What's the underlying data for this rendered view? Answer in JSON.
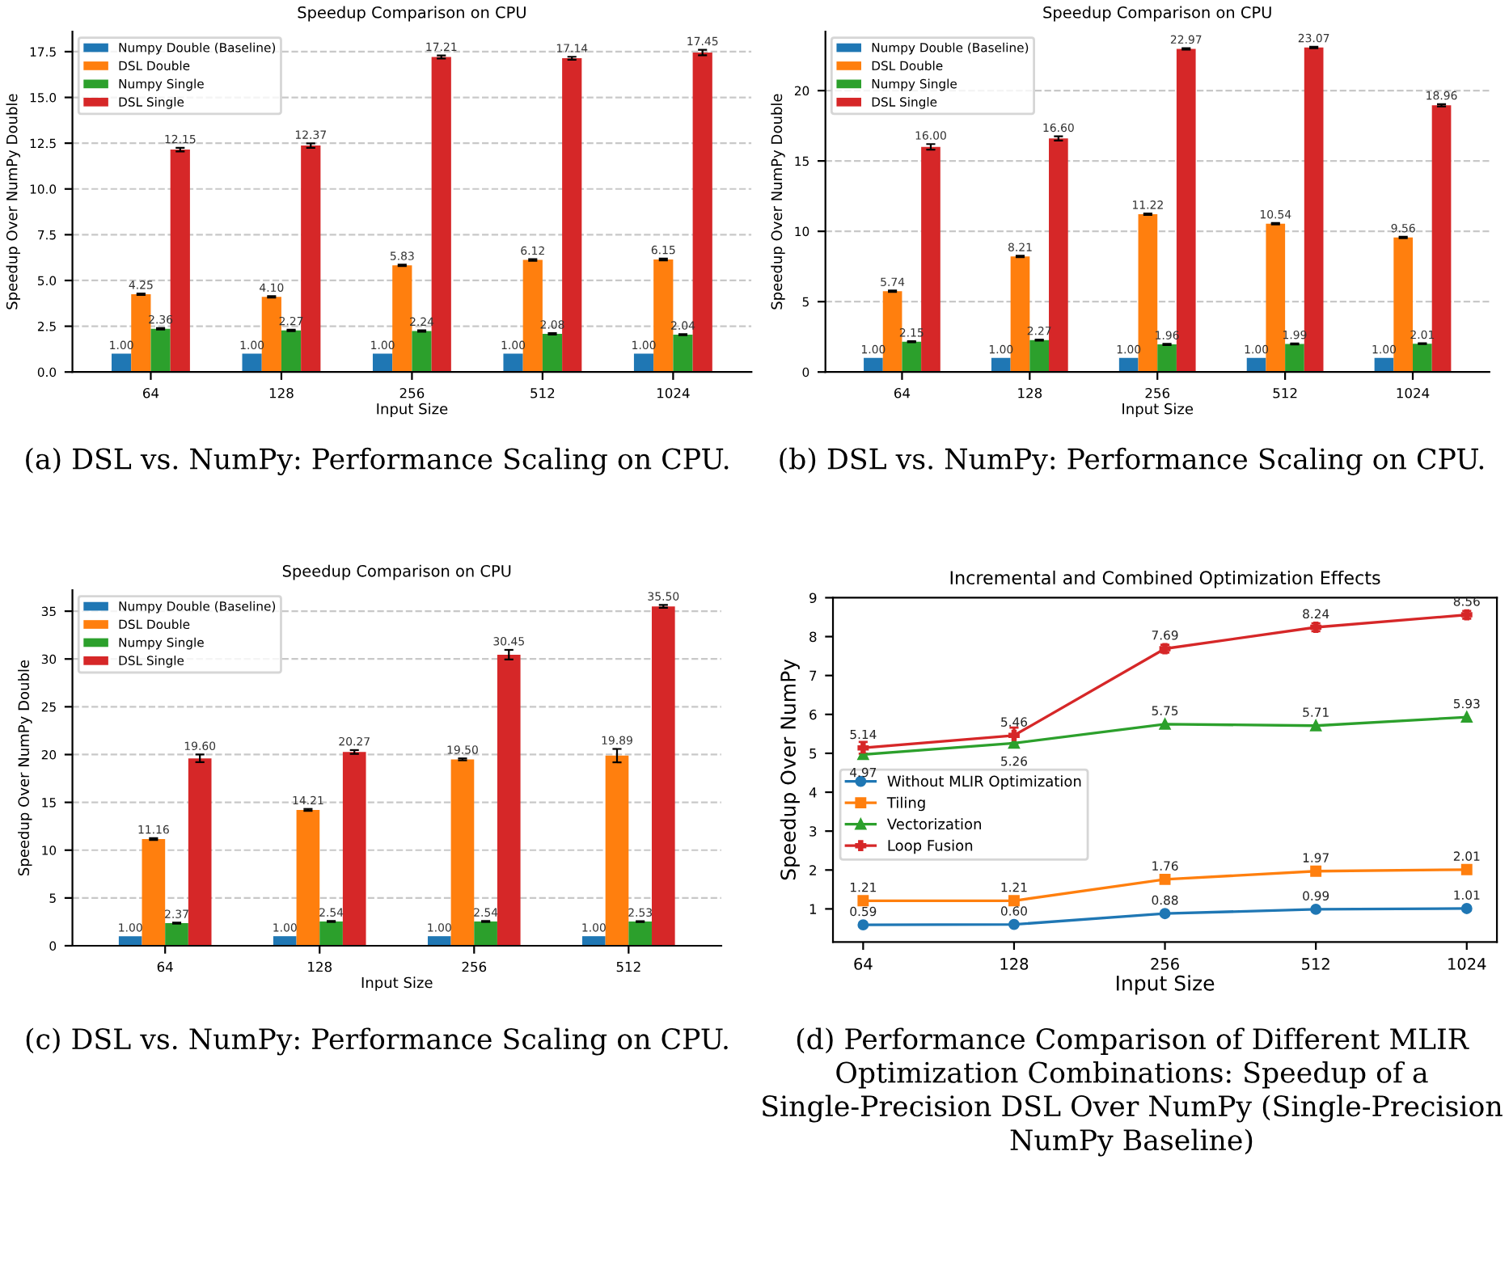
{
  "chart_data": [
    {
      "type": "bar",
      "title": "Speedup Comparison on CPU",
      "xlabel": "Input Size",
      "ylabel": "Speedup Over NumPy Double",
      "categories": [
        "64",
        "128",
        "256",
        "512",
        "1024"
      ],
      "series": [
        {
          "name": "Numpy Double (Baseline)",
          "color": "#1f77b4",
          "values": [
            1.0,
            1.0,
            1.0,
            1.0,
            1.0
          ],
          "value_labels": [
            "1.00",
            "1.00",
            "1.00",
            "1.00",
            "1.00"
          ]
        },
        {
          "name": "DSL Double",
          "color": "#ff7f0e",
          "values": [
            4.25,
            4.1,
            5.83,
            6.12,
            6.15
          ],
          "errors": [
            0.04,
            0.04,
            0.04,
            0.04,
            0.05
          ],
          "value_labels": [
            "4.25",
            "4.10",
            "5.83",
            "6.12",
            "6.15"
          ]
        },
        {
          "name": "Numpy Single",
          "color": "#2ca02c",
          "values": [
            2.36,
            2.27,
            2.24,
            2.08,
            2.04
          ],
          "errors": [
            0.04,
            0.04,
            0.04,
            0.04,
            0.03
          ],
          "value_labels": [
            "2.36",
            "2.27",
            "2.24",
            "2.08",
            "2.04"
          ]
        },
        {
          "name": "DSL Single",
          "color": "#d62728",
          "values": [
            12.15,
            12.37,
            17.21,
            17.14,
            17.45
          ],
          "errors": [
            0.1,
            0.12,
            0.08,
            0.08,
            0.15
          ],
          "value_labels": [
            "12.15",
            "12.37",
            "17.21",
            "17.14",
            "17.45"
          ]
        }
      ],
      "ylim": [
        0,
        18.6
      ],
      "yticks": [
        {
          "value": 0,
          "label": "0.0"
        },
        {
          "value": 2.5,
          "label": "2.5"
        },
        {
          "value": 5,
          "label": "5.0"
        },
        {
          "value": 7.5,
          "label": "7.5"
        },
        {
          "value": 10,
          "label": "10.0"
        },
        {
          "value": 12.5,
          "label": "12.5"
        },
        {
          "value": 15,
          "label": "15.0"
        },
        {
          "value": 17.5,
          "label": "17.5"
        }
      ],
      "grid": "y",
      "legend": "top left",
      "annotations": [
        "(a) DSL vs. NumPy: Performance Scaling on CPU."
      ]
    },
    {
      "type": "bar",
      "title": "Speedup Comparison on CPU",
      "xlabel": "Input Size",
      "ylabel": "Speedup Over NumPy Double",
      "categories": [
        "64",
        "128",
        "256",
        "512",
        "1024"
      ],
      "series": [
        {
          "name": "Numpy Double (Baseline)",
          "color": "#1f77b4",
          "values": [
            1.0,
            1.0,
            1.0,
            1.0,
            1.0
          ],
          "value_labels": [
            "1.00",
            "1.00",
            "1.00",
            "1.00",
            "1.00"
          ]
        },
        {
          "name": "DSL Double",
          "color": "#ff7f0e",
          "values": [
            5.74,
            8.21,
            11.22,
            10.54,
            9.56
          ],
          "errors": [
            0.05,
            0.05,
            0.05,
            0.05,
            0.05
          ],
          "value_labels": [
            "5.74",
            "8.21",
            "11.22",
            "10.54",
            "9.56"
          ]
        },
        {
          "name": "Numpy Single",
          "color": "#2ca02c",
          "values": [
            2.15,
            2.27,
            1.96,
            1.99,
            2.01
          ],
          "errors": [
            0.04,
            0.04,
            0.04,
            0.04,
            0.03
          ],
          "value_labels": [
            "2.15",
            "2.27",
            "1.96",
            "1.99",
            "2.01"
          ]
        },
        {
          "name": "DSL Single",
          "color": "#d62728",
          "values": [
            16.0,
            16.6,
            22.97,
            23.07,
            18.96
          ],
          "errors": [
            0.2,
            0.15,
            0.05,
            0.05,
            0.08
          ],
          "value_labels": [
            "16.00",
            "16.60",
            "22.97",
            "23.07",
            "18.96"
          ]
        }
      ],
      "ylim": [
        0,
        24.2
      ],
      "yticks": [
        0,
        5,
        10,
        15,
        20
      ],
      "grid": "y",
      "legend": "top left",
      "annotations": [
        "(b) DSL vs. NumPy: Performance Scaling on CPU."
      ]
    },
    {
      "type": "bar",
      "title": "Speedup Comparison on CPU",
      "xlabel": "Input Size",
      "ylabel": "Speedup Over NumPy Double",
      "categories": [
        "64",
        "128",
        "256",
        "512"
      ],
      "series": [
        {
          "name": "Numpy Double (Baseline)",
          "color": "#1f77b4",
          "values": [
            1.0,
            1.0,
            1.0,
            1.0
          ],
          "value_labels": [
            "1.00",
            "1.00",
            "1.00",
            "1.00"
          ]
        },
        {
          "name": "DSL Double",
          "color": "#ff7f0e",
          "values": [
            11.16,
            14.21,
            19.5,
            19.89
          ],
          "errors": [
            0.1,
            0.1,
            0.1,
            0.7
          ],
          "value_labels": [
            "11.16",
            "14.21",
            "19.50",
            "19.89"
          ]
        },
        {
          "name": "Numpy Single",
          "color": "#2ca02c",
          "values": [
            2.37,
            2.54,
            2.54,
            2.53
          ],
          "errors": [
            0.05,
            0.05,
            0.05,
            0.05
          ],
          "value_labels": [
            "2.37",
            "2.54",
            "2.54",
            "2.53"
          ]
        },
        {
          "name": "DSL Single",
          "color": "#d62728",
          "values": [
            19.6,
            20.27,
            30.45,
            35.5
          ],
          "errors": [
            0.4,
            0.2,
            0.5,
            0.15
          ],
          "value_labels": [
            "19.60",
            "20.27",
            "30.45",
            "35.50"
          ]
        }
      ],
      "ylim": [
        0,
        37.2
      ],
      "yticks": [
        0,
        5,
        10,
        15,
        20,
        25,
        30,
        35
      ],
      "grid": "y",
      "legend": "top left",
      "annotations": [
        "(c) DSL vs. NumPy: Performance Scaling on CPU."
      ]
    },
    {
      "type": "line",
      "title": "Incremental and Combined Optimization Effects",
      "xlabel": "Input Size",
      "ylabel": "Speedup Over NumPy",
      "categories": [
        "64",
        "128",
        "256",
        "512",
        "1024"
      ],
      "series": [
        {
          "name": "Without MLIR Optimization",
          "color": "#1f77b4",
          "marker": "circle",
          "values": [
            0.59,
            0.6,
            0.88,
            0.99,
            1.01
          ],
          "value_labels": [
            "0.59",
            "0.60",
            "0.88",
            "0.99",
            "1.01"
          ]
        },
        {
          "name": "Tiling",
          "color": "#ff7f0e",
          "marker": "square",
          "values": [
            1.21,
            1.21,
            1.76,
            1.97,
            2.01
          ],
          "value_labels": [
            "1.21",
            "1.21",
            "1.76",
            "1.97",
            "2.01"
          ]
        },
        {
          "name": "Vectorization",
          "color": "#2ca02c",
          "marker": "triangle",
          "values": [
            4.97,
            5.26,
            5.75,
            5.71,
            5.93
          ],
          "value_labels": [
            "4.97",
            "5.26",
            "5.75",
            "5.71",
            "5.93"
          ]
        },
        {
          "name": "Loop Fusion",
          "color": "#d62728",
          "marker": "cross",
          "values": [
            5.14,
            5.46,
            7.69,
            8.24,
            8.56
          ],
          "errors": [
            0.15,
            0.2,
            0.1,
            0.1,
            0.1
          ],
          "value_labels": [
            "5.14",
            "5.46",
            "7.69",
            "8.24",
            "8.56"
          ]
        }
      ],
      "ylim": [
        0.15,
        9
      ],
      "yticks": [
        1,
        2,
        3,
        4,
        5,
        6,
        7,
        8,
        9
      ],
      "line_style": "solid",
      "grid": false,
      "legend": "left",
      "annotations": [
        "(d) Performance Comparison of Different MLIR Optimization Combinations: Speedup of a Single-Precision DSL Over NumPy (Single-Precision NumPy Baseline)"
      ]
    }
  ]
}
